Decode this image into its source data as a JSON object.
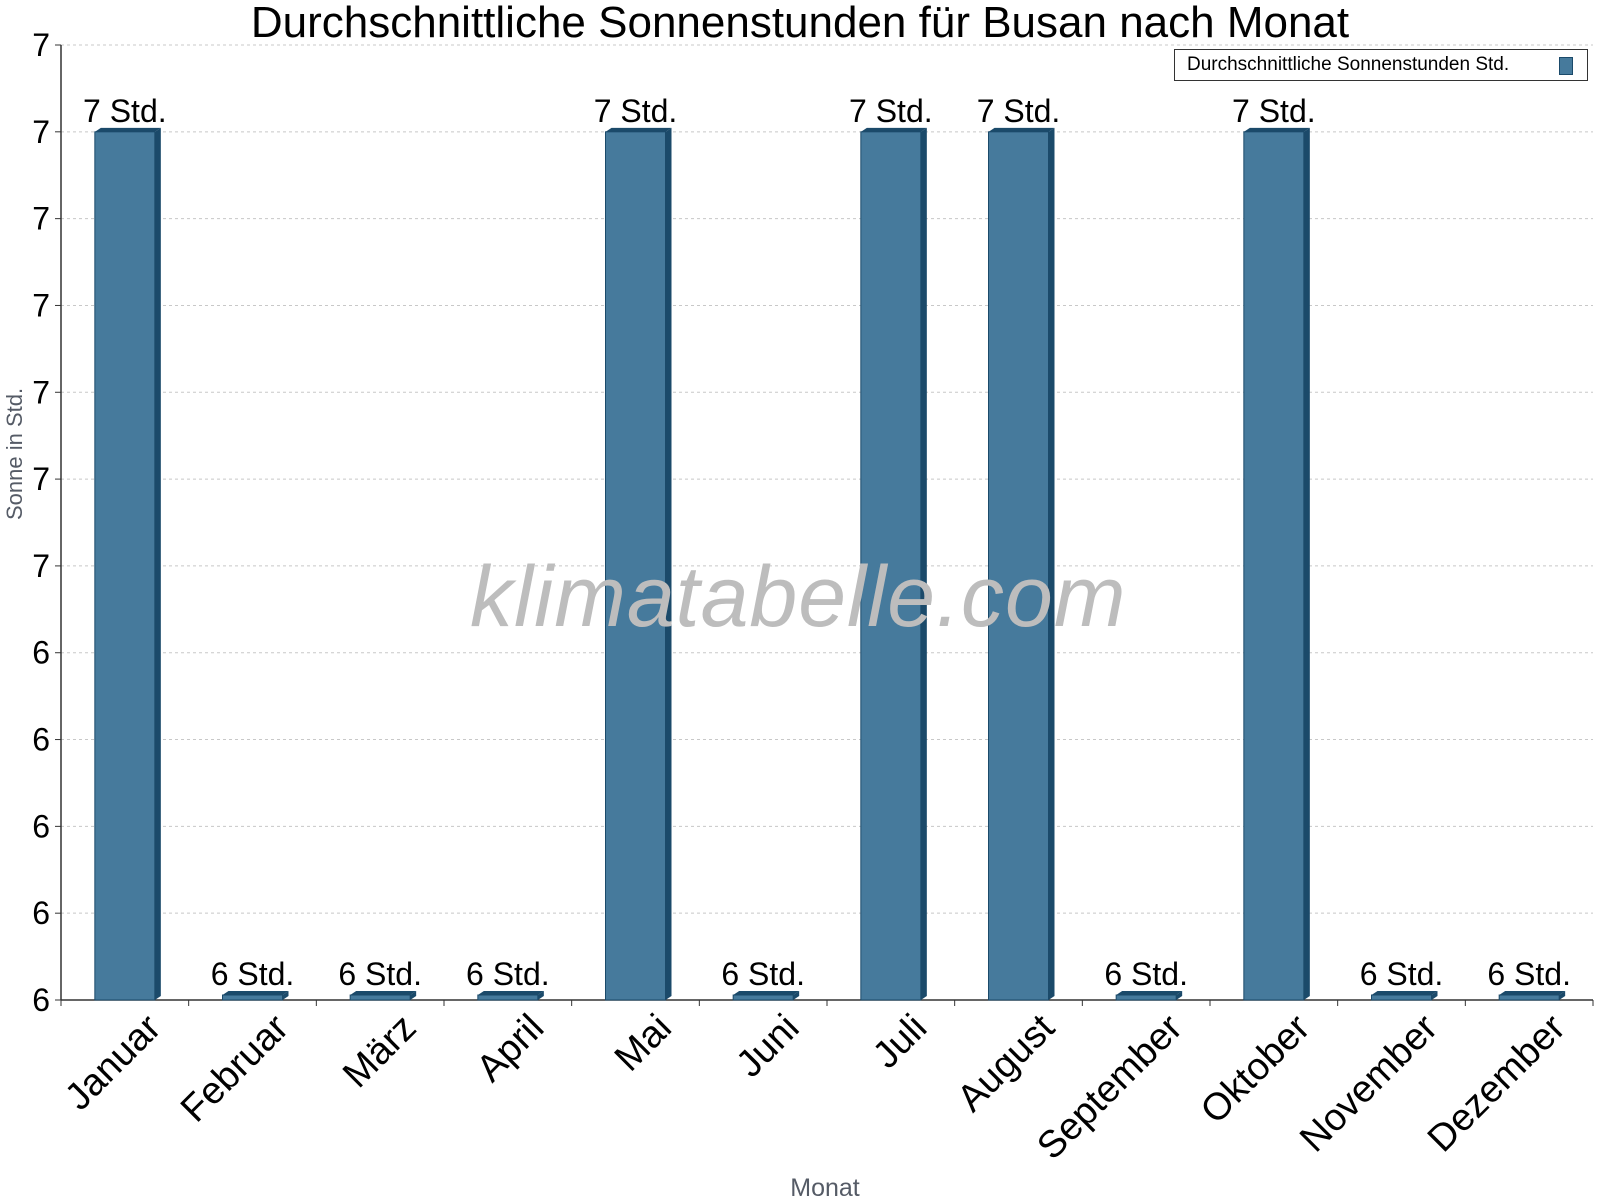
{
  "chart_data": {
    "type": "bar",
    "title": "Durchschnittliche Sonnenstunden für Busan nach Monat",
    "xlabel": "Monat",
    "ylabel": "Sonne in Std.",
    "categories": [
      "Januar",
      "Februar",
      "März",
      "April",
      "Mai",
      "Juni",
      "Juli",
      "August",
      "September",
      "Oktober",
      "November",
      "Dezember"
    ],
    "series": [
      {
        "name": "Durchschnittliche Sonnenstunden Std.",
        "values": [
          7,
          6,
          6,
          6,
          7,
          6,
          7,
          7,
          6,
          7,
          6,
          6
        ],
        "labels": [
          "7 Std.",
          "6 Std.",
          "6 Std.",
          "6 Std.",
          "7 Std.",
          "6 Std.",
          "7 Std.",
          "7 Std.",
          "6 Std.",
          "7 Std.",
          "6 Std.",
          "6 Std."
        ]
      }
    ],
    "ytick_labels": [
      "6",
      "6",
      "6",
      "6",
      "6",
      "7",
      "7",
      "7",
      "7",
      "7",
      "7",
      "7"
    ],
    "ylim": [
      6,
      7.1
    ],
    "grid": true,
    "legend_position": "top-right",
    "colors": {
      "bar": "#467a9c",
      "bar_edge": "#1b4a6a",
      "grid": "#c8c8c8"
    }
  },
  "watermark": "klimatabelle.com"
}
